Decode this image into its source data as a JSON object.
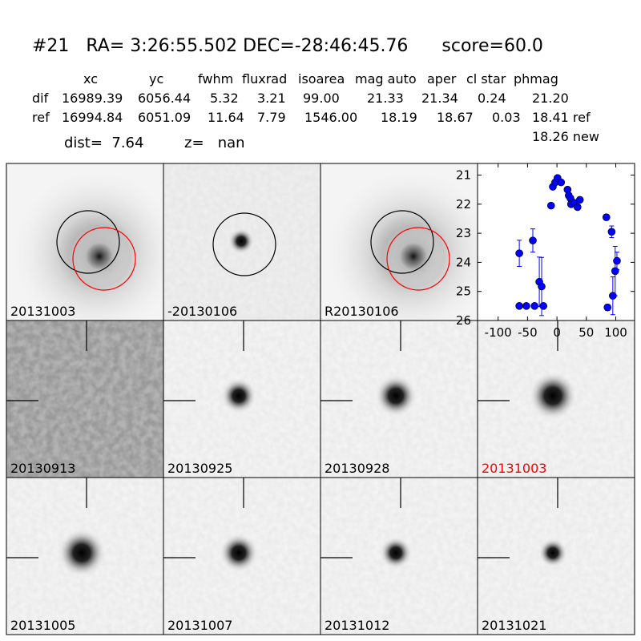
{
  "header": {
    "title": "#21   RA= 3:26:55.502 DEC=-28:46:45.76      score=60.0",
    "columns": [
      "xc",
      "yc",
      "fwhm",
      "fluxrad",
      "isoarea",
      "mag auto",
      "aper",
      "cl star",
      "phmag"
    ],
    "rows": [
      [
        "dif",
        "16989.39",
        "6056.44",
        "5.32",
        "3.21",
        "99.00",
        "21.33",
        "21.34",
        "0.24",
        "21.20"
      ],
      [
        "ref",
        "16994.84",
        "6051.09",
        "11.64",
        "7.79",
        "1546.00",
        "18.19",
        "18.67",
        "0.03",
        "18.41 ref"
      ]
    ],
    "extra": "18.26 new",
    "dist": "dist=  7.64",
    "z": "z=   nan"
  },
  "stamps": [
    {
      "label": "20131003"
    },
    {
      "label": "-20130106"
    },
    {
      "label": "R20130106"
    }
  ],
  "cutouts": [
    {
      "label": "20130913"
    },
    {
      "label": "20130925"
    },
    {
      "label": "20130928"
    },
    {
      "label": "20131003",
      "color": "#ff0000"
    },
    {
      "label": "20131005"
    },
    {
      "label": "20131007"
    },
    {
      "label": "20131012"
    },
    {
      "label": "20131021"
    }
  ],
  "chart_data": {
    "type": "scatter",
    "color": "#0000ff",
    "x": [
      -64,
      -52,
      -38,
      -23,
      -64,
      -41,
      -30,
      -26,
      -10,
      -7,
      -3,
      1,
      7,
      18,
      20,
      23,
      24,
      29,
      35,
      39,
      84,
      93,
      86,
      95,
      99,
      102
    ],
    "values": [
      25.5,
      25.5,
      25.5,
      25.5,
      23.69,
      23.25,
      24.67,
      24.83,
      22.05,
      21.4,
      21.25,
      21.1,
      21.25,
      21.5,
      21.7,
      21.8,
      22.0,
      21.95,
      22.1,
      21.85,
      22.45,
      22.95,
      25.55,
      25.15,
      24.3,
      23.95
    ],
    "errors": [
      0.05,
      0.05,
      0.05,
      0.05,
      0.45,
      0.4,
      0.85,
      1.0,
      0.05,
      0.05,
      0.05,
      0.05,
      0.05,
      0.05,
      0.05,
      0.05,
      0.05,
      0.05,
      0.05,
      0.05,
      0.1,
      0.2,
      0.1,
      0.65,
      0.85,
      0.3
    ],
    "xlim": [
      -135,
      132
    ],
    "ylim": [
      26,
      20.6
    ],
    "xticks": [
      -100,
      -50,
      0,
      50,
      100
    ],
    "yticks": [
      21,
      22,
      23,
      24,
      25,
      26
    ]
  }
}
